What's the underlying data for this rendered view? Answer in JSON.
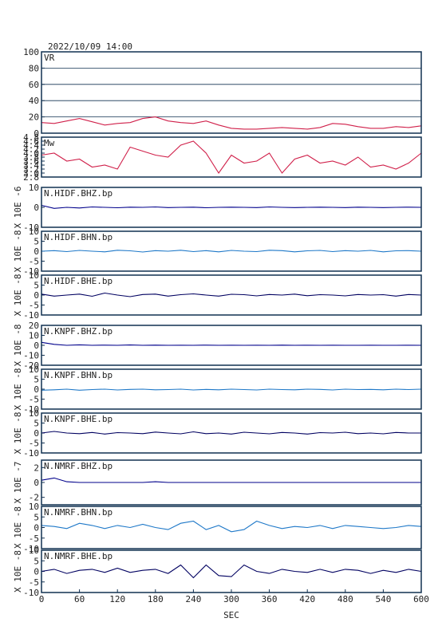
{
  "chart_data": [
    {
      "type": "line",
      "title": "2022/10/09 14:00",
      "xlim": [
        0,
        600
      ],
      "ylim": [
        0,
        100
      ],
      "yticks": [
        0,
        20,
        40,
        60,
        80,
        100
      ],
      "grid": true,
      "x": [
        0,
        20,
        40,
        60,
        80,
        100,
        120,
        140,
        160,
        180,
        200,
        220,
        240,
        260,
        280,
        300,
        320,
        340,
        360,
        380,
        400,
        420,
        440,
        460,
        480,
        500,
        520,
        540,
        560,
        580,
        600
      ],
      "series": [
        {
          "name": "VR",
          "color": "#d0204a",
          "values": [
            13,
            12,
            15,
            18,
            14,
            10,
            12,
            13,
            18,
            20,
            15,
            13,
            12,
            15,
            10,
            6,
            5,
            5,
            6,
            7,
            6,
            5,
            7,
            12,
            11,
            8,
            6,
            6,
            8,
            7,
            9
          ]
        }
      ]
    },
    {
      "type": "line",
      "xlim": [
        0,
        600
      ],
      "ylim": [
        2.8,
        4.8
      ],
      "yticks": [
        2.8,
        {
          "value": 3.0,
          "label": "3.0"
        },
        3.2,
        3.4,
        3.6,
        3.8,
        {
          "value": 4.0,
          "label": "4.0"
        },
        4.2,
        4.4,
        4.6,
        4.8
      ],
      "x": [
        0,
        20,
        40,
        60,
        80,
        100,
        120,
        140,
        160,
        180,
        200,
        220,
        240,
        260,
        280,
        300,
        320,
        340,
        360,
        380,
        400,
        420,
        440,
        460,
        480,
        500,
        520,
        540,
        560,
        580,
        600
      ],
      "series": [
        {
          "name": "Mw",
          "color": "#d0204a",
          "values": [
            3.9,
            4.0,
            3.6,
            3.7,
            3.3,
            3.4,
            3.2,
            4.3,
            4.1,
            3.9,
            3.8,
            4.4,
            4.6,
            4.0,
            3.0,
            3.9,
            3.5,
            3.6,
            4.0,
            3.0,
            3.7,
            3.9,
            3.5,
            3.6,
            3.4,
            3.8,
            3.3,
            3.4,
            3.2,
            3.5,
            4.0
          ]
        }
      ]
    },
    {
      "type": "line",
      "ylabel": "X 10E -6",
      "xlim": [
        0,
        600
      ],
      "ylim": [
        -10,
        10
      ],
      "yticks": [
        -10,
        0,
        10
      ],
      "x": [
        0,
        20,
        40,
        60,
        80,
        100,
        120,
        140,
        160,
        180,
        200,
        220,
        240,
        260,
        280,
        300,
        320,
        340,
        360,
        380,
        400,
        420,
        440,
        460,
        480,
        500,
        520,
        540,
        560,
        580,
        600
      ],
      "series": [
        {
          "name": "N.HIDF.BHZ.bp",
          "color": "#00008b",
          "values": [
            1,
            -0.5,
            0,
            -0.3,
            0.2,
            0,
            -0.2,
            0.1,
            0,
            0.2,
            -0.1,
            0,
            0.1,
            -0.2,
            0,
            0.1,
            0,
            -0.1,
            0.2,
            0,
            -0.1,
            0,
            0.1,
            0,
            -0.1,
            0.1,
            0,
            -0.1,
            0,
            0.1,
            0
          ]
        }
      ]
    },
    {
      "type": "line",
      "ylabel": "X 10E -8",
      "xlim": [
        0,
        600
      ],
      "ylim": [
        -10,
        10
      ],
      "yticks": [
        -10,
        -5,
        0,
        5,
        10
      ],
      "x": [
        0,
        20,
        40,
        60,
        80,
        100,
        120,
        140,
        160,
        180,
        200,
        220,
        240,
        260,
        280,
        300,
        320,
        340,
        360,
        380,
        400,
        420,
        440,
        460,
        480,
        500,
        520,
        540,
        560,
        580,
        600
      ],
      "series": [
        {
          "name": "N.HIDF.BHN.bp",
          "color": "#1e78c8",
          "values": [
            0,
            0.3,
            -0.2,
            0.4,
            0,
            -0.3,
            0.5,
            0.2,
            -0.4,
            0.3,
            0,
            0.5,
            -0.2,
            0.3,
            -0.3,
            0.4,
            0,
            -0.2,
            0.5,
            0.3,
            -0.3,
            0.2,
            0.4,
            -0.2,
            0.3,
            0,
            0.4,
            -0.3,
            0.2,
            0.3,
            0
          ]
        }
      ]
    },
    {
      "type": "line",
      "ylabel": "X 10E -8",
      "xlim": [
        0,
        600
      ],
      "ylim": [
        -10,
        10
      ],
      "yticks": [
        -10,
        -5,
        0,
        5,
        10
      ],
      "x": [
        0,
        20,
        40,
        60,
        80,
        100,
        120,
        140,
        160,
        180,
        200,
        220,
        240,
        260,
        280,
        300,
        320,
        340,
        360,
        380,
        400,
        420,
        440,
        460,
        480,
        500,
        520,
        540,
        560,
        580,
        600
      ],
      "series": [
        {
          "name": "N.HIDF.BHE.bp",
          "color": "#000060",
          "values": [
            0.5,
            -0.5,
            0,
            0.5,
            -0.6,
            1,
            0,
            -0.8,
            0.3,
            0.5,
            -0.5,
            0.2,
            0.6,
            0,
            -0.5,
            0.4,
            0.2,
            -0.4,
            0.3,
            0,
            0.5,
            -0.3,
            0.2,
            0,
            -0.4,
            0.3,
            0,
            0.2,
            -0.5,
            0.3,
            0
          ]
        }
      ]
    },
    {
      "type": "line",
      "ylabel": "X 10E -8",
      "xlim": [
        0,
        600
      ],
      "ylim": [
        -20,
        20
      ],
      "yticks": [
        -20,
        -10,
        0,
        10,
        20
      ],
      "x": [
        0,
        20,
        40,
        60,
        80,
        100,
        120,
        140,
        160,
        180,
        200,
        220,
        240,
        260,
        280,
        300,
        320,
        340,
        360,
        380,
        400,
        420,
        440,
        460,
        480,
        500,
        520,
        540,
        560,
        580,
        600
      ],
      "series": [
        {
          "name": "N.KNPF.BHZ.bp",
          "color": "#00008b",
          "values": [
            3,
            1,
            0,
            0.5,
            0,
            0.2,
            0,
            0.3,
            0,
            0.2,
            0,
            0.1,
            0,
            0.2,
            0,
            0.1,
            0,
            0.1,
            0,
            0.2,
            0,
            0.1,
            0,
            0.1,
            0,
            0,
            0.1,
            0,
            0,
            0.1,
            0
          ]
        }
      ]
    },
    {
      "type": "line",
      "ylabel": "X 10E -8",
      "xlim": [
        0,
        600
      ],
      "ylim": [
        -10,
        10
      ],
      "yticks": [
        -10,
        -5,
        0,
        5,
        10
      ],
      "x": [
        0,
        20,
        40,
        60,
        80,
        100,
        120,
        140,
        160,
        180,
        200,
        220,
        240,
        260,
        280,
        300,
        320,
        340,
        360,
        380,
        400,
        420,
        440,
        460,
        480,
        500,
        520,
        540,
        560,
        580,
        600
      ],
      "series": [
        {
          "name": "N.KNPF.BHN.bp",
          "color": "#1e78c8",
          "values": [
            -0.5,
            -0.3,
            0,
            -0.5,
            -0.2,
            0,
            -0.4,
            -0.1,
            0,
            -0.3,
            -0.2,
            0,
            -0.4,
            -0.1,
            -0.3,
            0,
            -0.2,
            -0.4,
            0,
            -0.2,
            -0.3,
            0,
            -0.1,
            -0.4,
            0,
            -0.2,
            -0.1,
            -0.3,
            0,
            -0.2,
            0
          ]
        }
      ]
    },
    {
      "type": "line",
      "ylabel": "X 10E -8",
      "xlim": [
        0,
        600
      ],
      "ylim": [
        -10,
        10
      ],
      "yticks": [
        -10,
        -5,
        0,
        5,
        10
      ],
      "x": [
        0,
        20,
        40,
        60,
        80,
        100,
        120,
        140,
        160,
        180,
        200,
        220,
        240,
        260,
        280,
        300,
        320,
        340,
        360,
        380,
        400,
        420,
        440,
        460,
        480,
        500,
        520,
        540,
        560,
        580,
        600
      ],
      "series": [
        {
          "name": "N.KNPF.BHE.bp",
          "color": "#000060",
          "values": [
            0,
            0.8,
            0,
            -0.3,
            0.3,
            -0.5,
            0.2,
            0,
            -0.3,
            0.5,
            0,
            -0.4,
            0.6,
            -0.3,
            0,
            -0.5,
            0.4,
            0,
            -0.4,
            0.3,
            0,
            -0.5,
            0.2,
            0,
            0.4,
            -0.3,
            0,
            -0.4,
            0.3,
            0,
            0
          ]
        }
      ]
    },
    {
      "type": "line",
      "ylabel": "X 10E -7",
      "xlim": [
        0,
        600
      ],
      "ylim": [
        -3,
        3
      ],
      "yticks": [
        -2,
        0,
        2
      ],
      "x": [
        0,
        20,
        40,
        60,
        80,
        100,
        120,
        140,
        160,
        180,
        200,
        220,
        240,
        260,
        280,
        300,
        320,
        340,
        360,
        380,
        400,
        420,
        440,
        460,
        480,
        500,
        520,
        540,
        560,
        580,
        600
      ],
      "series": [
        {
          "name": "N.NMRF.BHZ.bp",
          "color": "#00008b",
          "values": [
            0.3,
            0.6,
            0.1,
            0,
            0,
            0,
            0,
            0,
            0,
            0.1,
            0,
            0,
            0,
            0,
            0,
            0,
            0,
            0,
            0,
            0,
            0,
            0,
            0,
            0,
            0,
            0,
            0,
            0,
            0,
            0,
            0
          ]
        }
      ]
    },
    {
      "type": "line",
      "ylabel": "X 10E -8",
      "xlim": [
        0,
        600
      ],
      "ylim": [
        -10,
        10
      ],
      "yticks": [
        -10,
        -5,
        0,
        5,
        10
      ],
      "x": [
        0,
        20,
        40,
        60,
        80,
        100,
        120,
        140,
        160,
        180,
        200,
        220,
        240,
        260,
        280,
        300,
        320,
        340,
        360,
        380,
        400,
        420,
        440,
        460,
        480,
        500,
        520,
        540,
        560,
        580,
        600
      ],
      "series": [
        {
          "name": "N.NMRF.BHN.bp",
          "color": "#1e78c8",
          "values": [
            1,
            0.5,
            -0.5,
            2,
            1,
            -0.5,
            1,
            0,
            1.5,
            0,
            -1,
            2,
            3,
            -1,
            1,
            -2,
            -1,
            3,
            1,
            -0.5,
            0.5,
            0,
            1,
            -0.5,
            1,
            0.5,
            0,
            -0.5,
            0,
            1,
            0.5
          ]
        }
      ]
    },
    {
      "type": "line",
      "ylabel": "X 10E -8",
      "xlabel": "SEC",
      "xlim": [
        0,
        600
      ],
      "ylim": [
        -10,
        10
      ],
      "yticks": [
        -10,
        -5,
        0,
        5,
        10
      ],
      "xticks": [
        0,
        60,
        120,
        180,
        240,
        300,
        360,
        420,
        480,
        540,
        600
      ],
      "x": [
        0,
        20,
        40,
        60,
        80,
        100,
        120,
        140,
        160,
        180,
        200,
        220,
        240,
        260,
        280,
        300,
        320,
        340,
        360,
        380,
        400,
        420,
        440,
        460,
        480,
        500,
        520,
        540,
        560,
        580,
        600
      ],
      "series": [
        {
          "name": "N.NMRF.BHE.bp",
          "color": "#000060",
          "values": [
            0,
            1,
            -1,
            0.5,
            1,
            -0.5,
            1.5,
            -0.5,
            0.5,
            1,
            -1,
            3,
            -3,
            3,
            -2,
            -2.5,
            3,
            0,
            -1,
            1,
            0,
            -0.5,
            1,
            -0.5,
            1,
            0.5,
            -1,
            0.5,
            -0.5,
            1,
            0
          ]
        }
      ]
    }
  ]
}
